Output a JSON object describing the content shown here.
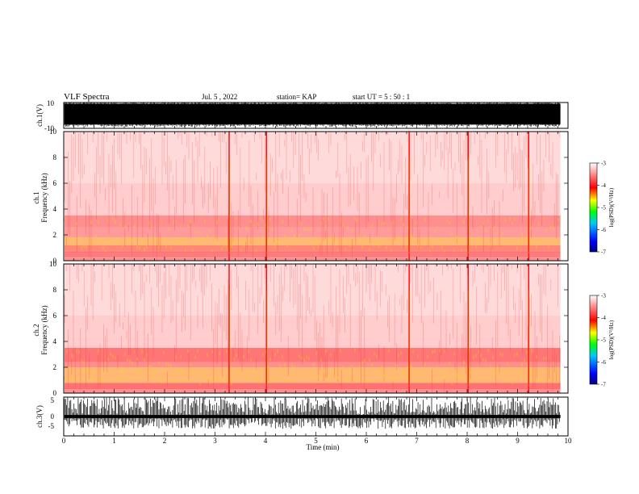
{
  "header": {
    "title": "VLF Spectra",
    "date": "Jul. 5 , 2022",
    "station": "station= KAP",
    "start_ut": "start UT = 5 : 50 : 1"
  },
  "chart_data": [
    {
      "type": "line",
      "panel": "ch1-waveform",
      "ylabel": "ch.1(V)",
      "ylim": [
        -10,
        10
      ],
      "yticks": [
        "10",
        "-10"
      ],
      "xlim": [
        0,
        10
      ],
      "x_end_data": 9.85,
      "typical_range": [
        -7,
        9
      ],
      "color": "#000000"
    },
    {
      "type": "heatmap",
      "panel": "ch1-spectrogram",
      "ylabel": "ch.1\nFrequency (kHz)",
      "ylim": [
        0,
        10
      ],
      "yticks": [
        "0",
        "2",
        "4",
        "6",
        "8",
        "10"
      ],
      "xlim": [
        0,
        10
      ],
      "x_end_data": 9.85,
      "colorbar": {
        "label": "log(PSD)(V²/Hz)",
        "range": [
          -7,
          -3
        ],
        "ticks": [
          "-3",
          "-4",
          "-5",
          "-6",
          "-7"
        ],
        "colors": [
          "#000080",
          "#0000ff",
          "#00c8ff",
          "#00ff00",
          "#ffff00",
          "#ff0000",
          "#ffffff"
        ]
      },
      "bands": [
        {
          "f": [
            0.0,
            0.3
          ],
          "level": -3.9
        },
        {
          "f": [
            0.3,
            0.8
          ],
          "level": -4.0
        },
        {
          "f": [
            0.8,
            1.2
          ],
          "level": -4.2
        },
        {
          "f": [
            1.2,
            1.8
          ],
          "level": -4.4
        },
        {
          "f": [
            1.8,
            2.6
          ],
          "level": -3.8
        },
        {
          "f": [
            2.6,
            3.5
          ],
          "level": -3.9
        },
        {
          "f": [
            3.5,
            6.0
          ],
          "level": -3.4
        },
        {
          "f": [
            6.0,
            10.0
          ],
          "level": -3.3
        }
      ],
      "bursts_min": [
        3.28,
        4.02,
        6.85,
        8.02,
        9.22
      ]
    },
    {
      "type": "heatmap",
      "panel": "ch2-spectrogram",
      "ylabel": "ch.2\nFrequency (kHz)",
      "ylim": [
        0,
        10
      ],
      "yticks": [
        "0",
        "2",
        "4",
        "6",
        "8",
        "10"
      ],
      "xlim": [
        0,
        10
      ],
      "x_end_data": 9.85,
      "colorbar": {
        "label": "log(PSD)(V²/Hz)",
        "range": [
          -7,
          -3
        ],
        "ticks": [
          "-3",
          "-4",
          "-5",
          "-6",
          "-7"
        ],
        "colors": [
          "#000080",
          "#0000ff",
          "#00c8ff",
          "#00ff00",
          "#ffff00",
          "#ff0000",
          "#ffffff"
        ]
      },
      "bands": [
        {
          "f": [
            0.0,
            0.3
          ],
          "level": -3.9
        },
        {
          "f": [
            0.3,
            0.8
          ],
          "level": -4.1
        },
        {
          "f": [
            0.8,
            2.0
          ],
          "level": -4.4
        },
        {
          "f": [
            2.0,
            2.4
          ],
          "level": -3.9
        },
        {
          "f": [
            2.4,
            3.5
          ],
          "level": -4.1
        },
        {
          "f": [
            3.5,
            6.0
          ],
          "level": -3.4
        },
        {
          "f": [
            6.0,
            10.0
          ],
          "level": -3.3
        }
      ],
      "bursts_min": [
        3.28,
        4.02,
        6.85,
        8.02,
        9.22
      ]
    },
    {
      "type": "line",
      "panel": "ch3-waveform",
      "ylabel": "ch.3(V)",
      "ylim": [
        -5,
        5
      ],
      "yticks": [
        "5",
        "0",
        "-5"
      ],
      "xlim": [
        0,
        10
      ],
      "x_end_data": 9.85,
      "typical_range": [
        -0.4,
        0.4
      ],
      "xlabel": "Time (min)",
      "xticks": [
        "0",
        "1",
        "2",
        "3",
        "4",
        "5",
        "6",
        "7",
        "8",
        "9",
        "10"
      ],
      "color": "#000000"
    }
  ]
}
